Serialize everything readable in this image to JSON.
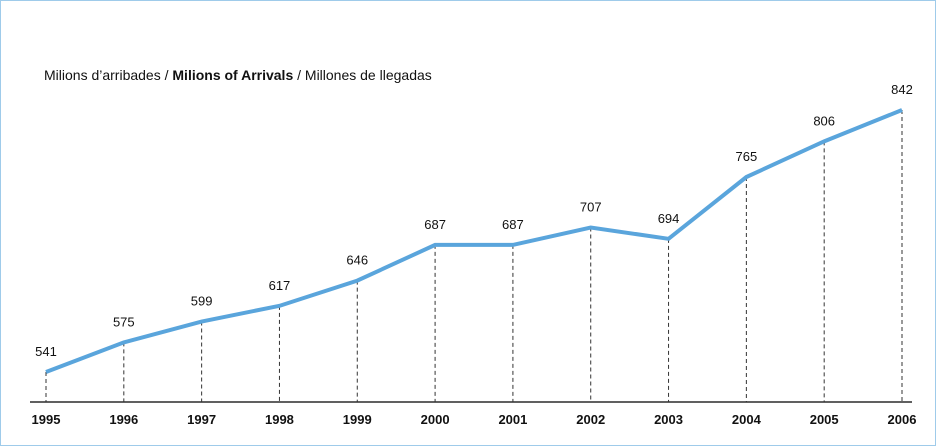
{
  "chart_data": {
    "type": "line",
    "title_parts": [
      "Milions d’arribades",
      "Milions of Arrivals",
      "Millones de llegadas"
    ],
    "title_separator": "/",
    "categories": [
      "1995",
      "1996",
      "1997",
      "1998",
      "1999",
      "2000",
      "2001",
      "2002",
      "2003",
      "2004",
      "2005",
      "2006"
    ],
    "series": [
      {
        "color": "#5aa5dc",
        "values": [
          541,
          575,
          599,
          617,
          646,
          687,
          687,
          707,
          694,
          765,
          806,
          842
        ]
      }
    ]
  }
}
